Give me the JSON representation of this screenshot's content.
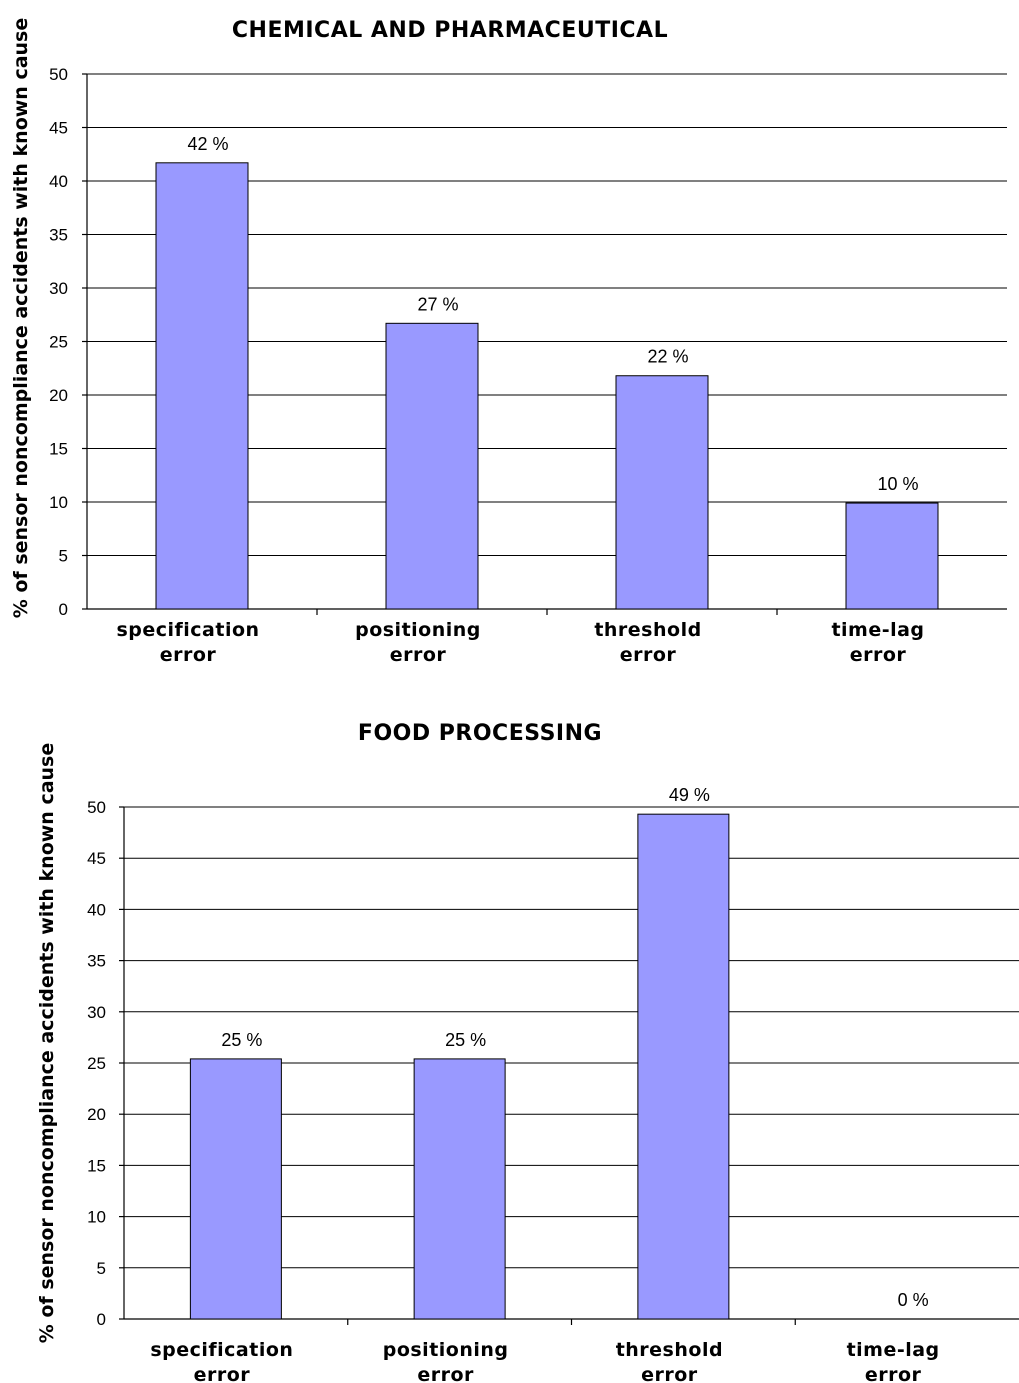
{
  "colors": {
    "bar": "#9999ff",
    "grid": "#000000"
  },
  "chart_data": [
    {
      "type": "bar",
      "title": "CHEMICAL AND PHARMACEUTICAL",
      "ylabel": "% of sensor noncompliance accidents with known cause",
      "xlabel": "",
      "ylim": [
        0,
        50
      ],
      "yticks": [
        0,
        5,
        10,
        15,
        20,
        25,
        30,
        35,
        40,
        45,
        50
      ],
      "grid": true,
      "categories": [
        {
          "line1": "specification",
          "line2": "error"
        },
        {
          "line1": "positioning",
          "line2": "error"
        },
        {
          "line1": "threshold",
          "line2": "error"
        },
        {
          "line1": "time-lag",
          "line2": "error"
        }
      ],
      "values": [
        41.7,
        26.7,
        21.8,
        9.9
      ],
      "data_labels": [
        "42 %",
        "27 %",
        "22 %",
        "10 %"
      ]
    },
    {
      "type": "bar",
      "title": "FOOD PROCESSING",
      "ylabel": "% of sensor noncompliance accidents with known cause",
      "xlabel": "",
      "ylim": [
        0,
        50
      ],
      "yticks": [
        0,
        5,
        10,
        15,
        20,
        25,
        30,
        35,
        40,
        45,
        50
      ],
      "grid": true,
      "categories": [
        {
          "line1": "specification",
          "line2": "error"
        },
        {
          "line1": "positioning",
          "line2": "error"
        },
        {
          "line1": "threshold",
          "line2": "error"
        },
        {
          "line1": "time-lag",
          "line2": "error"
        }
      ],
      "values": [
        25.4,
        25.4,
        49.3,
        0
      ],
      "data_labels": [
        "25 %",
        "25 %",
        "49 %",
        "0 %"
      ]
    }
  ]
}
